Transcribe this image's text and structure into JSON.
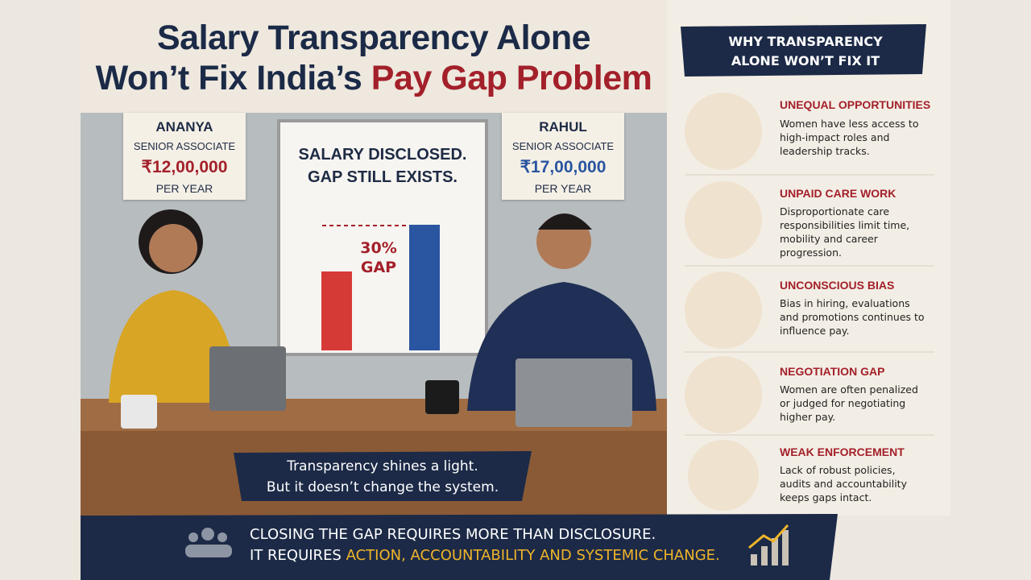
{
  "header": {
    "title_line1": "Salary Transparency Alone",
    "title_line2": "Won’t Fix India’s",
    "title_highlight": "Pay Gap Problem"
  },
  "people": [
    {
      "name": "ANANYA",
      "role": "SENIOR ASSOCIATE",
      "salary": "₹12,00,000",
      "period": "PER YEAR"
    },
    {
      "name": "RAHUL",
      "role": "SENIOR ASSOCIATE",
      "salary": "₹17,00,000",
      "period": "PER YEAR"
    }
  ],
  "whiteboard": {
    "heading_line1": "SALARY DISCLOSED.",
    "heading_line2": "GAP STILL EXISTS.",
    "gap_value": "30%",
    "gap_word": "GAP"
  },
  "caption": {
    "line1": "Transparency shines a light.",
    "line2": "But it doesn’t change the system."
  },
  "panel": {
    "heading_line1": "WHY TRANSPARENCY",
    "heading_line2": "ALONE WON’T FIX IT",
    "reasons": [
      {
        "title": "UNEQUAL OPPORTUNITIES",
        "text": "Women have less access to high-impact roles and leadership tracks."
      },
      {
        "title": "UNPAID CARE WORK",
        "text": "Disproportionate care responsibilities limit time, mobility and career progression."
      },
      {
        "title": "UNCONSCIOUS BIAS",
        "text": "Bias in hiring, evaluations and promotions continues to influence pay."
      },
      {
        "title": "NEGOTIATION GAP",
        "text": "Women are often penalized or judged for negotiating higher pay."
      },
      {
        "title": "WEAK ENFORCEMENT",
        "text": "Lack of robust policies, audits and accountability keeps gaps intact."
      }
    ]
  },
  "footer": {
    "line1": "CLOSING THE GAP REQUIRES MORE THAN DISCLOSURE.",
    "line2_start": "IT REQUIRES",
    "line2_highlight": "ACTION, ACCOUNTABILITY AND SYSTEMIC CHANGE."
  }
}
